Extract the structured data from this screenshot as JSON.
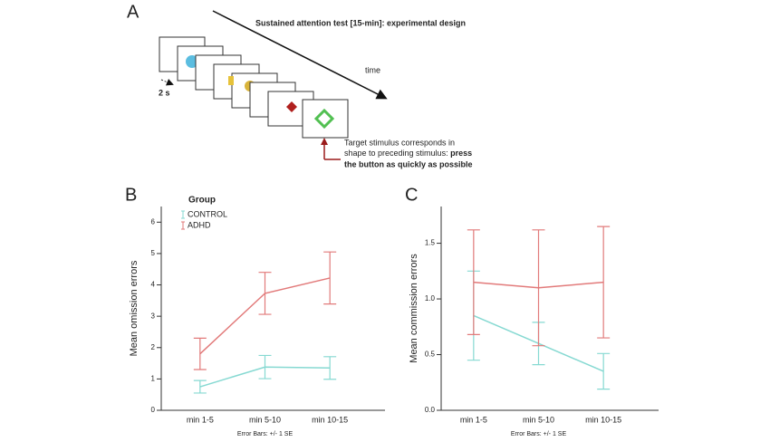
{
  "panel_a": {
    "label": "A",
    "title": "Sustained attention test [15-min]: experimental design",
    "time_label": "time",
    "interval_label": "2 s",
    "target_line_1": "Target stimulus corresponds in",
    "target_line_2": "shape to preceding stimulus:",
    "target_line_2_bold": "press",
    "target_line_3": "the button as quickly as possible"
  },
  "chart_data": [
    {
      "type": "line",
      "panel": "B",
      "y_label": "Mean omission errors",
      "note": "Error Bars: +/- 1 SE",
      "categories": [
        "min 1-5",
        "min 5-10",
        "min 10-15"
      ],
      "legend": true,
      "legend_title": "Group",
      "series": [
        {
          "name": "CONTROL",
          "color": "#86d9d2",
          "values": [
            0.75,
            1.38,
            1.35
          ],
          "errors": [
            0.2,
            0.37,
            0.36
          ]
        },
        {
          "name": "ADHD",
          "color": "#e27a7a",
          "values": [
            1.8,
            3.73,
            4.22
          ],
          "errors": [
            0.5,
            0.67,
            0.83
          ]
        }
      ],
      "ylim": [
        0,
        6.5
      ],
      "yticks": [
        0,
        1,
        2,
        3,
        4,
        5,
        6
      ]
    },
    {
      "type": "line",
      "panel": "C",
      "y_label": "Mean commission errors",
      "note": "Error Bars: +/- 1 SE",
      "categories": [
        "min 1-5",
        "min 5-10",
        "min 10-15"
      ],
      "legend": false,
      "series": [
        {
          "color": "#86d9d2",
          "values": [
            0.85,
            0.6,
            0.35
          ],
          "errors": [
            0.4,
            0.19,
            0.16
          ]
        },
        {
          "color": "#e27a7a",
          "values": [
            1.15,
            1.1,
            1.15
          ],
          "errors": [
            0.47,
            0.52,
            0.5
          ]
        }
      ],
      "ylim": [
        0,
        1.83
      ],
      "yticks": [
        {
          "value": 0,
          "label": "0.0"
        },
        {
          "value": 0.5,
          "label": "0.5"
        },
        {
          "value": 1,
          "label": "1.0"
        },
        {
          "value": 1.5,
          "label": "1.5"
        }
      ]
    }
  ]
}
